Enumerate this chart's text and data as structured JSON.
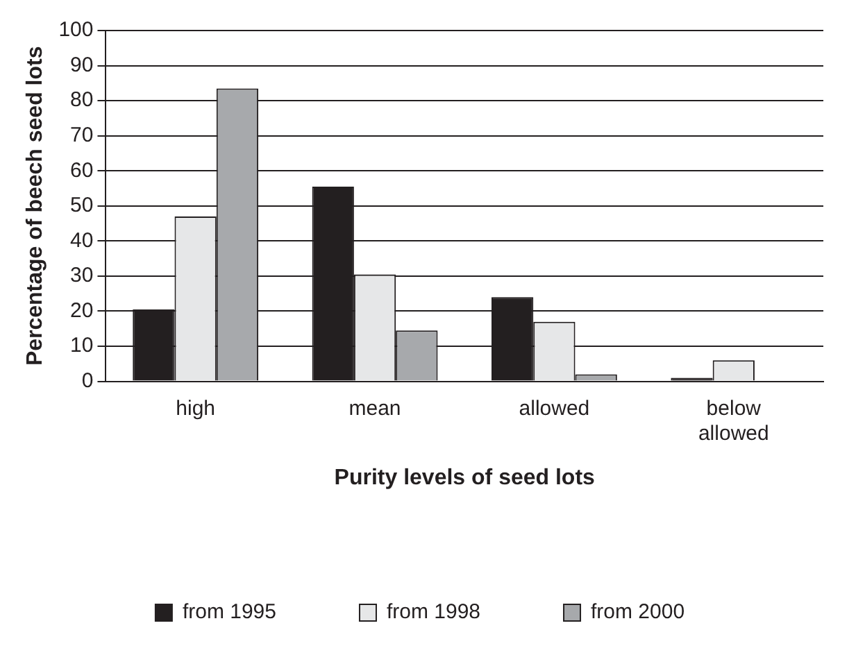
{
  "chart_data": {
    "type": "bar",
    "xlabel": "Purity levels of seed lots",
    "ylabel": "Percentage of beech seed lots",
    "categories": [
      "high",
      "mean",
      "allowed",
      "below allowed"
    ],
    "series": [
      {
        "name": "from 1995",
        "color": "#231f20",
        "values": [
          20.5,
          55.5,
          24,
          1
        ]
      },
      {
        "name": "from 1998",
        "color": "#e6e7e8",
        "values": [
          47,
          30.5,
          17,
          6
        ]
      },
      {
        "name": "from 2000",
        "color": "#a7a9ac",
        "values": [
          83.5,
          14.5,
          2,
          0
        ]
      }
    ],
    "ylim": [
      0,
      100
    ],
    "yticks": [
      0,
      10,
      20,
      30,
      40,
      50,
      60,
      70,
      80,
      90,
      100
    ],
    "grid": "y",
    "legend": "bottom"
  }
}
